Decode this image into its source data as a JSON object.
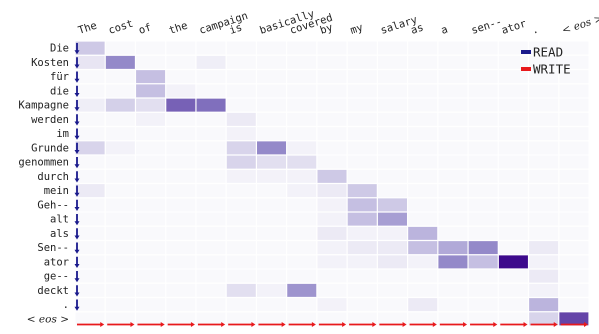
{
  "chart_data": {
    "type": "heatmap",
    "title": "",
    "xlabel": "",
    "ylabel": "",
    "x_tokens": [
      "The",
      "cost",
      "of",
      "the",
      "campaign",
      "is",
      "basically",
      "covered",
      "by",
      "my",
      "salary",
      "as",
      "a",
      "sen--",
      "ator",
      ".",
      "<eos>"
    ],
    "y_tokens": [
      "Die",
      "Kosten",
      "für",
      "die",
      "Kampagne",
      "werden",
      "im",
      "Grunde",
      "genommen",
      "durch",
      "mein",
      "Geh--",
      "alt",
      "als",
      "Sen--",
      "ator",
      "ge--",
      "deckt",
      ".",
      "<eos>"
    ],
    "x_eos_label": "< eos >",
    "y_eos_label": "< eos >",
    "legend": [
      {
        "name": "READ",
        "color": "#1a1a8c"
      },
      {
        "name": "WRITE",
        "color": "#e8191c"
      }
    ],
    "legend_position": "top-right",
    "colormap": "white-to-purple",
    "max_color": "#3d0a8c",
    "grid": true,
    "cells": [
      [
        0.25,
        0,
        0,
        0,
        0,
        0,
        0,
        0,
        0,
        0,
        0,
        0,
        0,
        0,
        0,
        0,
        0
      ],
      [
        0.12,
        0.55,
        0,
        0,
        0.08,
        0,
        0,
        0,
        0,
        0,
        0,
        0,
        0,
        0,
        0,
        0,
        0
      ],
      [
        0,
        0,
        0.3,
        0,
        0,
        0,
        0,
        0,
        0,
        0,
        0,
        0,
        0,
        0,
        0,
        0,
        0
      ],
      [
        0,
        0,
        0.3,
        0.06,
        0,
        0,
        0,
        0,
        0,
        0,
        0,
        0,
        0,
        0,
        0,
        0,
        0
      ],
      [
        0.08,
        0.22,
        0.15,
        0.7,
        0.65,
        0,
        0,
        0,
        0,
        0,
        0,
        0,
        0,
        0,
        0,
        0,
        0
      ],
      [
        0,
        0,
        0.06,
        0,
        0,
        0.1,
        0,
        0,
        0,
        0,
        0,
        0,
        0,
        0,
        0,
        0,
        0
      ],
      [
        0,
        0,
        0,
        0,
        0,
        0.06,
        0,
        0,
        0,
        0,
        0,
        0,
        0,
        0,
        0,
        0,
        0
      ],
      [
        0.2,
        0.06,
        0,
        0,
        0,
        0.2,
        0.55,
        0.06,
        0,
        0,
        0,
        0,
        0,
        0,
        0,
        0,
        0
      ],
      [
        0,
        0,
        0,
        0,
        0,
        0.2,
        0.15,
        0.15,
        0,
        0,
        0,
        0,
        0,
        0,
        0,
        0,
        0
      ],
      [
        0,
        0,
        0,
        0,
        0,
        0.06,
        0.06,
        0.06,
        0.25,
        0,
        0,
        0,
        0,
        0,
        0,
        0,
        0
      ],
      [
        0.1,
        0,
        0,
        0,
        0,
        0,
        0,
        0.06,
        0.1,
        0.25,
        0,
        0,
        0,
        0,
        0,
        0,
        0
      ],
      [
        0,
        0,
        0,
        0,
        0,
        0,
        0,
        0,
        0.06,
        0.3,
        0.25,
        0,
        0,
        0,
        0,
        0,
        0
      ],
      [
        0,
        0,
        0,
        0,
        0,
        0,
        0,
        0,
        0.06,
        0.3,
        0.45,
        0,
        0,
        0,
        0,
        0,
        0
      ],
      [
        0,
        0,
        0,
        0,
        0,
        0,
        0,
        0,
        0.1,
        0.06,
        0.06,
        0.35,
        0,
        0,
        0,
        0,
        0
      ],
      [
        0,
        0,
        0,
        0,
        0,
        0,
        0,
        0,
        0.06,
        0.1,
        0.1,
        0.3,
        0.4,
        0.55,
        0,
        0.1,
        0
      ],
      [
        0,
        0,
        0,
        0,
        0,
        0,
        0,
        0,
        0.06,
        0.06,
        0.1,
        0.06,
        0.55,
        0.3,
        1.0,
        0.06,
        0
      ],
      [
        0,
        0,
        0,
        0,
        0,
        0,
        0,
        0,
        0,
        0,
        0,
        0,
        0,
        0,
        0,
        0.1,
        0
      ],
      [
        0,
        0,
        0,
        0,
        0,
        0.15,
        0.06,
        0.5,
        0,
        0,
        0,
        0,
        0,
        0,
        0,
        0.06,
        0
      ],
      [
        0,
        0,
        0,
        0,
        0,
        0,
        0,
        0,
        0.06,
        0,
        0,
        0.1,
        0,
        0,
        0,
        0.35,
        0
      ],
      [
        0,
        0,
        0,
        0,
        0,
        0,
        0,
        0,
        0,
        0,
        0,
        0,
        0,
        0,
        0,
        0.2,
        0.8
      ]
    ],
    "read_arrows_rows": 19,
    "write_arrows_cols": 17
  }
}
